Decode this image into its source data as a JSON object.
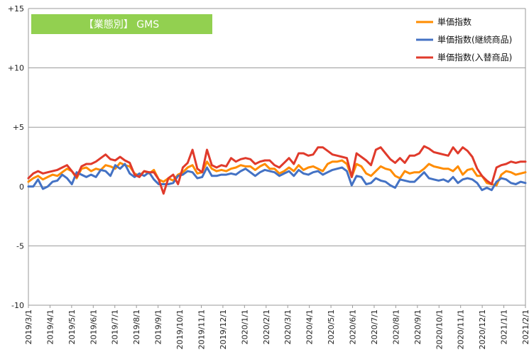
{
  "chart_data": {
    "type": "line",
    "title": "【業態別】 GMS",
    "title_color": "#92D050",
    "ylim": [
      -10,
      15
    ],
    "yticks": [
      {
        "value": 15,
        "label": "+15"
      },
      {
        "value": 10,
        "label": "+10"
      },
      {
        "value": 5,
        "label": "+5"
      },
      {
        "value": 0,
        "label": "0"
      },
      {
        "value": -5,
        "label": "-5"
      },
      {
        "value": -10,
        "label": "-10"
      }
    ],
    "x_tick_labels": [
      "2019/3/1",
      "2019/4/1",
      "2019/5/1",
      "2019/6/1",
      "2019/7/1",
      "2019/8/1",
      "2019/9/1",
      "2019/10/1",
      "2019/11/1",
      "2019/12/1",
      "2020/1/1",
      "2020/2/1",
      "2020/3/1",
      "2020/4/1",
      "2020/5/1",
      "2020/6/1",
      "2020/7/1",
      "2020/8/1",
      "2020/9/1",
      "2020/10/1",
      "2020/11/1",
      "2020/12/1",
      "2021/1/1",
      "2021/2/1"
    ],
    "legend_position": "top-right",
    "grid": "horizontal",
    "series": [
      {
        "name": "単価指数",
        "color": "#FF8C00",
        "values": [
          0.4,
          0.7,
          0.9,
          0.6,
          0.8,
          1.0,
          0.9,
          1.2,
          1.5,
          1.3,
          0.7,
          1.5,
          1.6,
          1.3,
          1.5,
          1.4,
          1.8,
          1.7,
          1.5,
          2.0,
          1.8,
          1.7,
          1.1,
          0.9,
          1.3,
          1.1,
          1.4,
          0.6,
          0.4,
          0.7,
          0.5,
          1.0,
          1.2,
          1.6,
          1.8,
          1.1,
          1.2,
          2.1,
          1.5,
          1.3,
          1.4,
          1.3,
          1.5,
          1.6,
          1.8,
          1.7,
          1.7,
          1.4,
          1.7,
          1.9,
          1.5,
          1.5,
          1.1,
          1.3,
          1.6,
          1.3,
          1.8,
          1.4,
          1.6,
          1.7,
          1.5,
          1.3,
          1.9,
          2.1,
          2.1,
          2.2,
          1.9,
          0.8,
          1.9,
          1.7,
          1.1,
          0.9,
          1.3,
          1.7,
          1.5,
          1.4,
          0.9,
          0.7,
          1.3,
          1.1,
          1.2,
          1.2,
          1.5,
          1.9,
          1.7,
          1.6,
          1.5,
          1.5,
          1.3,
          1.7,
          1.0,
          1.4,
          1.5,
          0.9,
          0.9,
          0.3,
          0.2,
          0.1,
          1.0,
          1.3,
          1.2,
          1.0,
          1.1,
          1.2
        ]
      },
      {
        "name": "単価指数(継続商品)",
        "color": "#4472C4",
        "values": [
          0.0,
          0.0,
          0.6,
          -0.2,
          0.0,
          0.4,
          0.5,
          1.0,
          0.7,
          0.2,
          1.2,
          1.0,
          0.8,
          1.0,
          0.8,
          1.4,
          1.3,
          0.9,
          1.8,
          1.5,
          1.9,
          1.1,
          0.8,
          1.1,
          0.9,
          1.2,
          0.6,
          0.2,
          0.2,
          0.2,
          0.3,
          0.9,
          1.0,
          1.3,
          1.2,
          0.7,
          0.8,
          1.6,
          0.9,
          0.9,
          1.0,
          1.0,
          1.1,
          1.0,
          1.3,
          1.5,
          1.2,
          0.9,
          1.2,
          1.4,
          1.3,
          1.2,
          0.9,
          1.1,
          1.3,
          0.9,
          1.4,
          1.1,
          1.0,
          1.2,
          1.3,
          1.0,
          1.2,
          1.4,
          1.5,
          1.6,
          1.3,
          0.1,
          0.9,
          0.8,
          0.2,
          0.3,
          0.7,
          0.5,
          0.4,
          0.1,
          -0.1,
          0.6,
          0.5,
          0.4,
          0.4,
          0.8,
          1.2,
          0.7,
          0.6,
          0.5,
          0.6,
          0.4,
          0.8,
          0.3,
          0.6,
          0.7,
          0.6,
          0.3,
          -0.3,
          -0.1,
          -0.3,
          0.4,
          0.7,
          0.6,
          0.3,
          0.2,
          0.4,
          0.3
        ]
      },
      {
        "name": "単価指数(入替商品)",
        "color": "#E03A2B",
        "values": [
          0.7,
          1.1,
          1.3,
          1.1,
          1.2,
          1.3,
          1.4,
          1.6,
          1.8,
          1.3,
          0.8,
          1.7,
          1.9,
          1.9,
          2.1,
          2.4,
          2.7,
          2.3,
          2.2,
          2.5,
          2.2,
          2.0,
          1.0,
          0.8,
          1.3,
          1.2,
          1.2,
          0.6,
          -0.6,
          0.7,
          1.0,
          0.2,
          1.6,
          2.0,
          3.1,
          1.5,
          1.2,
          3.1,
          1.8,
          1.6,
          1.8,
          1.7,
          2.4,
          2.1,
          2.3,
          2.4,
          2.3,
          1.9,
          2.1,
          2.2,
          2.2,
          1.8,
          1.6,
          2.0,
          2.4,
          1.9,
          2.8,
          2.8,
          2.6,
          2.7,
          3.3,
          3.3,
          3.0,
          2.7,
          2.6,
          2.5,
          2.4,
          0.8,
          2.8,
          2.5,
          2.2,
          1.8,
          3.1,
          3.3,
          2.8,
          2.3,
          2.0,
          2.4,
          2.0,
          2.6,
          2.6,
          2.8,
          3.4,
          3.2,
          2.9,
          2.8,
          2.7,
          2.6,
          3.3,
          2.8,
          3.3,
          3.0,
          2.5,
          1.5,
          0.9,
          0.5,
          0.2,
          1.6,
          1.8,
          1.9,
          2.1,
          2.0,
          2.1,
          2.1
        ]
      }
    ]
  }
}
